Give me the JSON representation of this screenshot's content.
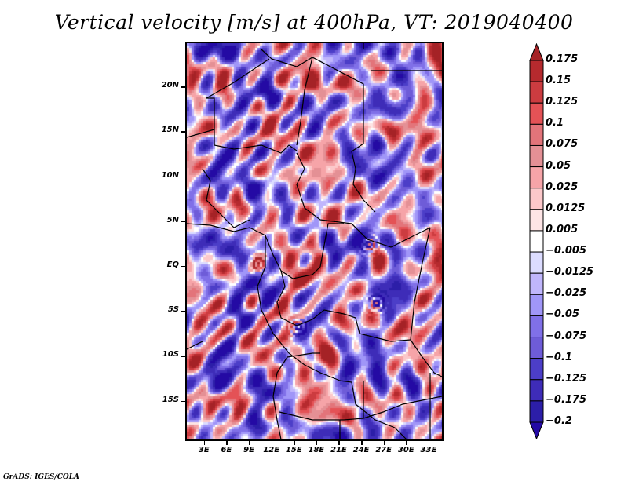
{
  "title": "Vertical velocity [m/s] at 400hPa, VT: 2019040400",
  "footer": "GrADS: IGES/COLA",
  "map": {
    "lat_range": [
      -19.5,
      25
    ],
    "lon_range": [
      0.5,
      35
    ],
    "lat_ticks": [
      {
        "value": 20,
        "label": "20N"
      },
      {
        "value": 15,
        "label": "15N"
      },
      {
        "value": 10,
        "label": "10N"
      },
      {
        "value": 5,
        "label": "5N"
      },
      {
        "value": 0,
        "label": "EQ"
      },
      {
        "value": -5,
        "label": "5S"
      },
      {
        "value": -10,
        "label": "10S"
      },
      {
        "value": -15,
        "label": "15S"
      }
    ],
    "lon_ticks": [
      {
        "value": 3,
        "label": "3E"
      },
      {
        "value": 6,
        "label": "6E"
      },
      {
        "value": 9,
        "label": "9E"
      },
      {
        "value": 12,
        "label": "12E"
      },
      {
        "value": 15,
        "label": "15E"
      },
      {
        "value": 18,
        "label": "18E"
      },
      {
        "value": 21,
        "label": "21E"
      },
      {
        "value": 24,
        "label": "24E"
      },
      {
        "value": 27,
        "label": "27E"
      },
      {
        "value": 30,
        "label": "30E"
      },
      {
        "value": 33,
        "label": "33E"
      }
    ]
  },
  "colorbar": {
    "orientation": "vertical",
    "extend": "both",
    "levels": [
      0.175,
      0.15,
      0.125,
      0.1,
      0.075,
      0.05,
      0.025,
      0.0125,
      0.005,
      -0.005,
      -0.0125,
      -0.025,
      -0.05,
      -0.075,
      -0.1,
      -0.125,
      -0.175,
      -0.2
    ],
    "labels": [
      "0.175",
      "0.15",
      "0.125",
      "0.1",
      "0.075",
      "0.05",
      "0.025",
      "0.0125",
      "0.005",
      "−0.005",
      "−0.0125",
      "−0.025",
      "−0.05",
      "−0.075",
      "−0.1",
      "−0.125",
      "−0.175",
      "−0.2"
    ],
    "colors": [
      "#a52226",
      "#b62a2e",
      "#cc3c40",
      "#e45256",
      "#e3747a",
      "#e49095",
      "#f6a4a8",
      "#fcc8ca",
      "#fde4e5",
      "#ffffff",
      "#dcdcff",
      "#c0b6fc",
      "#a096f8",
      "#8070e8",
      "#6e5cd8",
      "#4c3ec8",
      "#3e2cb8",
      "#2c1ea8",
      "#240aa4"
    ]
  }
}
